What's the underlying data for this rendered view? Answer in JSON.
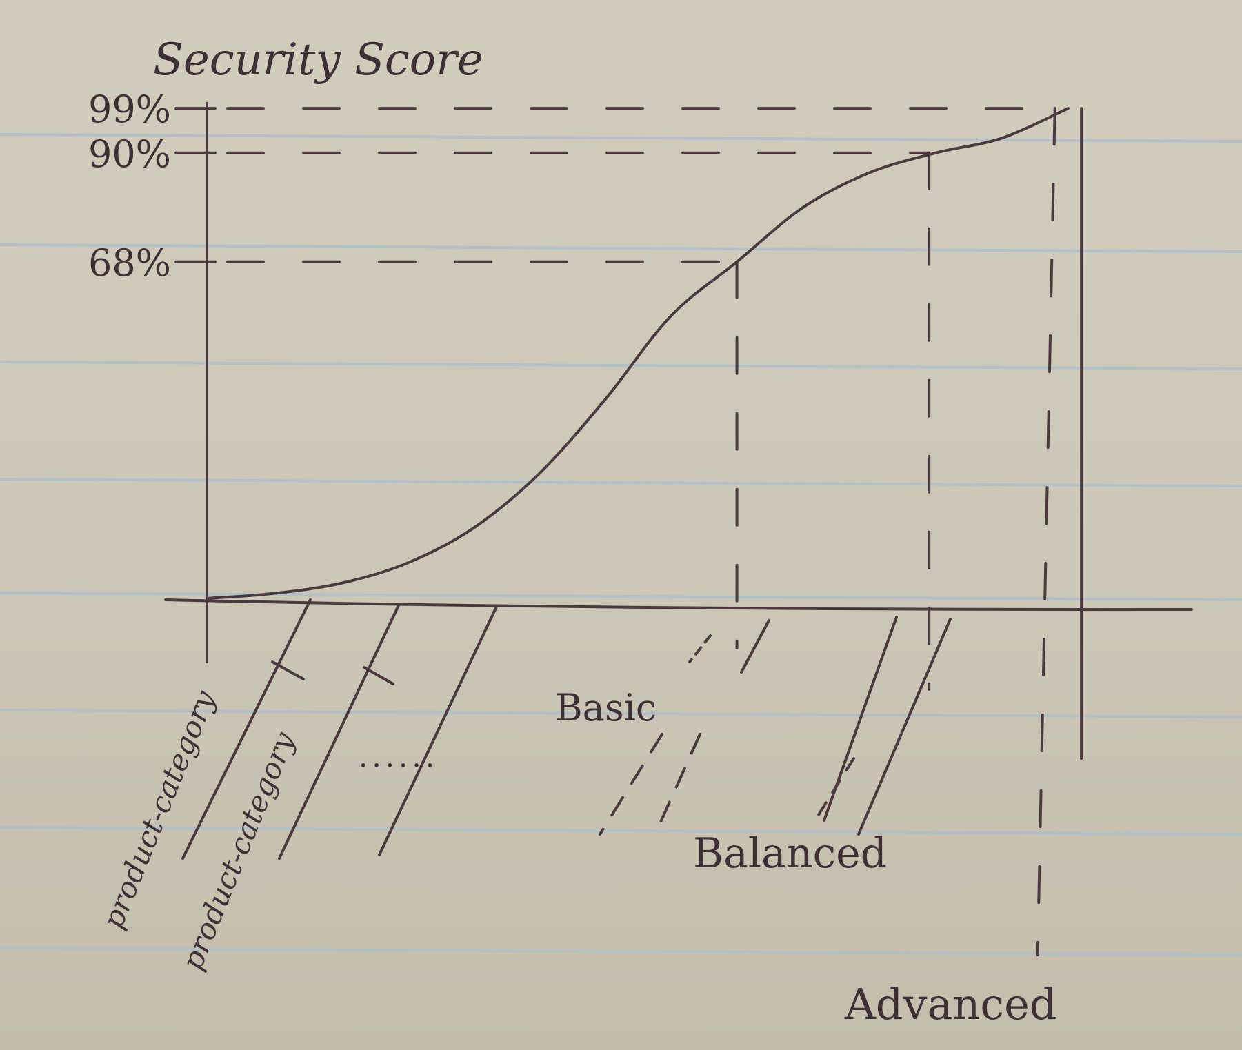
{
  "chart_data": {
    "type": "line",
    "title": "",
    "xlabel": "",
    "ylabel": "Security Score",
    "y_ticks": [
      "99%",
      "90%",
      "68%"
    ],
    "y_tick_values": [
      99,
      90,
      68
    ],
    "x_category_labels": [
      "product-category",
      "product-category"
    ],
    "ellipsis_label": "......",
    "tiers": [
      "Basic",
      "Balanced",
      "Advanced"
    ],
    "tier_thresholds": [
      68,
      90,
      99
    ],
    "series": [
      {
        "x": [
          0,
          0.5,
          1,
          1.5,
          2,
          2.5,
          3,
          3.5,
          4,
          4.5,
          5,
          5.5,
          6,
          6.5
        ],
        "values": [
          0,
          1,
          3,
          7,
          14,
          25,
          40,
          57,
          68,
          79,
          86,
          90,
          93,
          99
        ]
      }
    ],
    "tier_x": [
      4.0,
      5.45,
      6.4,
      6.6
    ],
    "xlim": [
      0,
      7
    ],
    "ylim": [
      0,
      100
    ],
    "grid": false,
    "ink_color": "#4a3a40",
    "paper_rule_color": "#aebfcb"
  }
}
